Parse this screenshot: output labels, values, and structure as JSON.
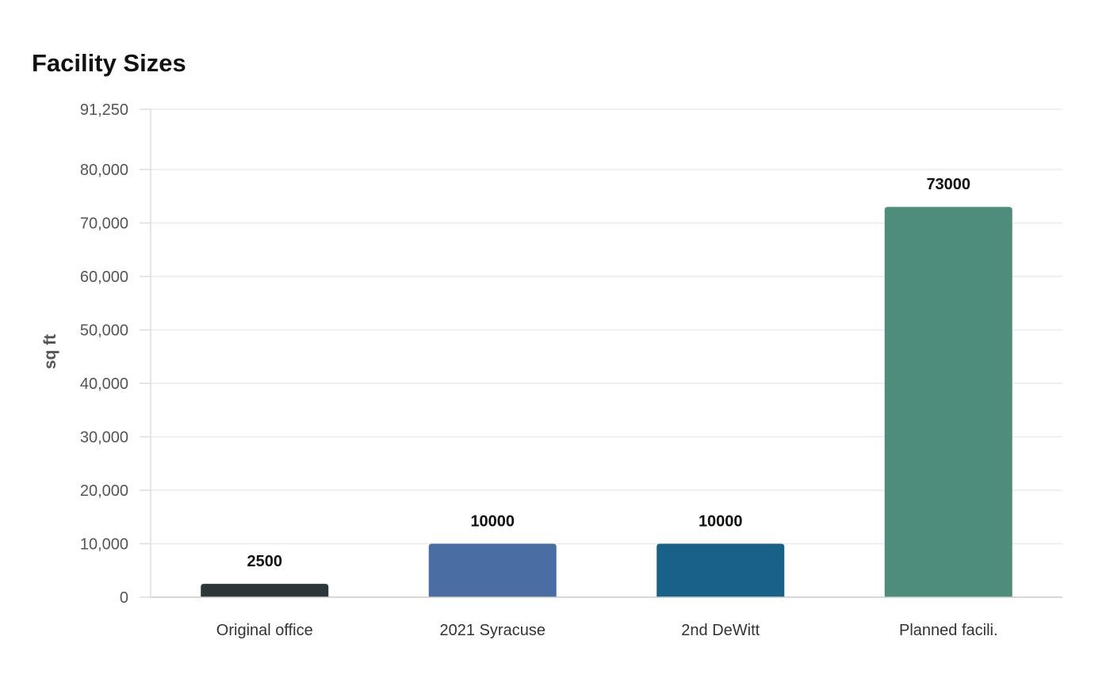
{
  "chart_data": {
    "type": "bar",
    "title": "Facility Sizes",
    "xlabel": "",
    "ylabel": "sq ft",
    "categories": [
      "Original office",
      "2021 Syracuse",
      "2nd DeWitt",
      "Planned facili."
    ],
    "values": [
      2500,
      10000,
      10000,
      73000
    ],
    "value_labels": [
      "2500",
      "10000",
      "10000",
      "73000"
    ],
    "colors": [
      "#2c3539",
      "#4a6da3",
      "#196186",
      "#4e8d7b"
    ],
    "ylim": [
      0,
      91250
    ],
    "yticks": [
      0,
      10000,
      20000,
      30000,
      40000,
      50000,
      60000,
      70000,
      80000,
      91250
    ],
    "ytick_labels": [
      "0",
      "10,000",
      "20,000",
      "30,000",
      "40,000",
      "50,000",
      "60,000",
      "70,000",
      "80,000",
      "91,250"
    ],
    "grid": true,
    "legend": "none"
  }
}
